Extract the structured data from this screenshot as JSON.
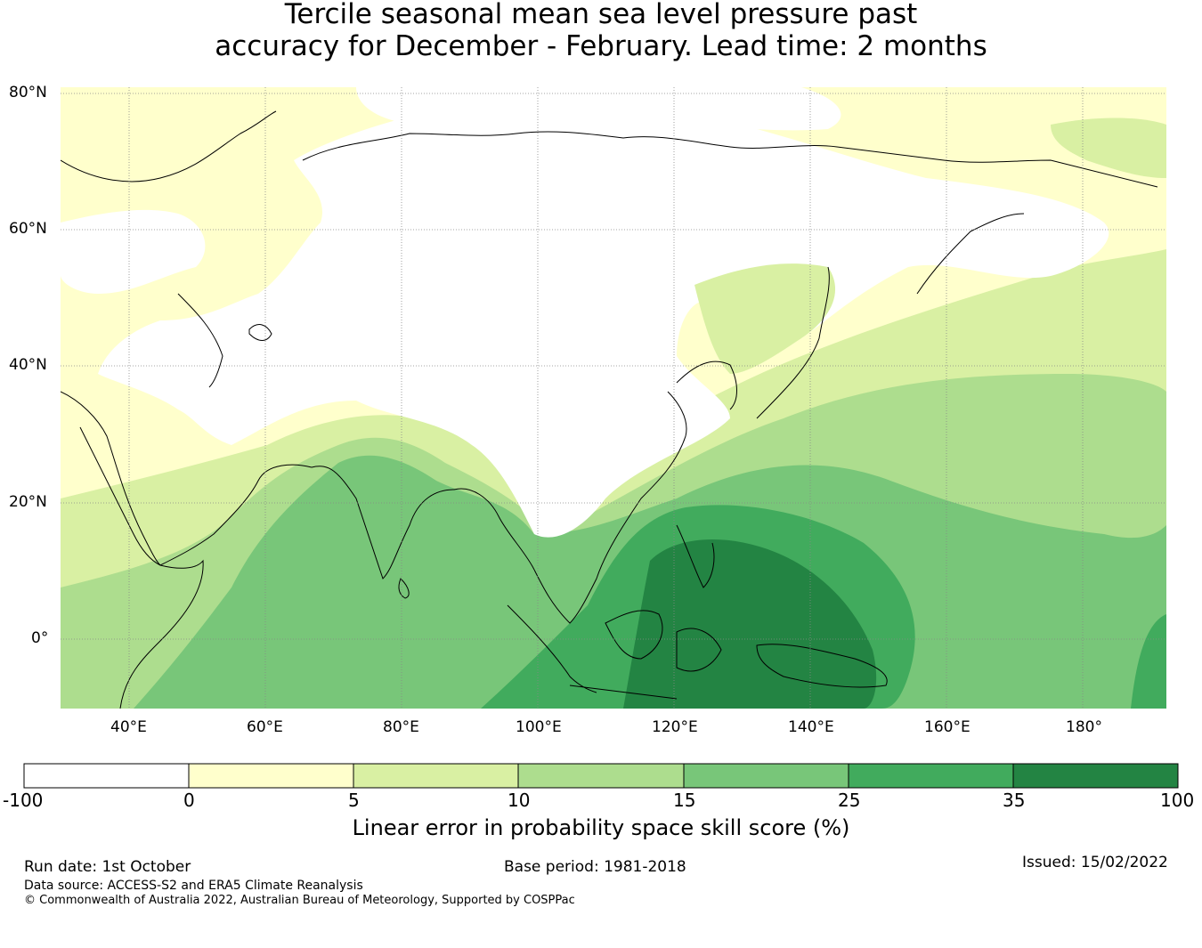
{
  "title": {
    "line1": "Tercile seasonal mean sea level pressure past",
    "line2": "accuracy for December - February. Lead time: 2 months"
  },
  "map": {
    "lat_labels": [
      "80°N",
      "60°N",
      "40°N",
      "20°N",
      "0°"
    ],
    "lon_labels": [
      "40°E",
      "60°E",
      "80°E",
      "100°E",
      "120°E",
      "140°E",
      "160°E",
      "180°"
    ],
    "lat_range": [
      -10,
      80
    ],
    "lon_range": [
      30,
      192
    ]
  },
  "legend": {
    "title": "Linear error in probability space skill score (%)",
    "ticks": [
      "-100",
      "0",
      "5",
      "10",
      "15",
      "25",
      "35",
      "100"
    ],
    "bins": [
      {
        "from": -100,
        "to": 0,
        "color": "#ffffff"
      },
      {
        "from": 0,
        "to": 5,
        "color": "#ffffcc"
      },
      {
        "from": 5,
        "to": 10,
        "color": "#d9f0a3"
      },
      {
        "from": 10,
        "to": 15,
        "color": "#addd8e"
      },
      {
        "from": 15,
        "to": 25,
        "color": "#78c679"
      },
      {
        "from": 25,
        "to": 35,
        "color": "#41ab5d"
      },
      {
        "from": 35,
        "to": 100,
        "color": "#238443"
      }
    ]
  },
  "footer": {
    "run_date": "Run date: 1st October",
    "base_period": "Base period: 1981-2018",
    "issued": "Issued: 15/02/2022",
    "data_source": "Data source: ACCESS-S2 and ERA5 Climate Reanalysis",
    "copyright": "© Commonwealth of Australia 2022, Australian Bureau of Meteorology, Supported by COSPPac"
  }
}
